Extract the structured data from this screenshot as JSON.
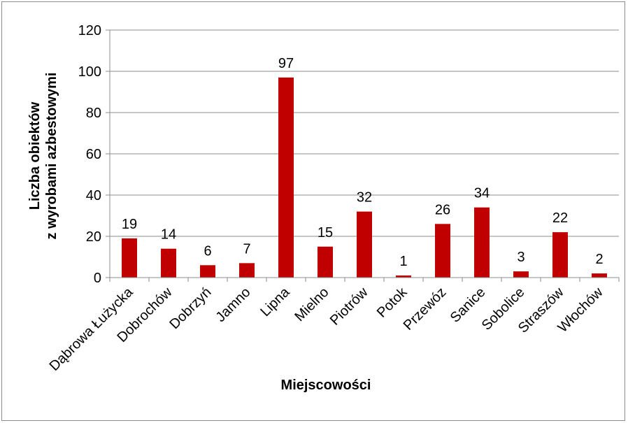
{
  "chart_data": {
    "type": "bar",
    "title": "",
    "xlabel": "Miejscowości",
    "ylabel_lines": [
      "Liczba obiektów",
      "z wyrobami azbestowymi"
    ],
    "categories": [
      "Dąbrowa Łużycka",
      "Dobrochów",
      "Dobrzyń",
      "Jamno",
      "Lipna",
      "Mielno",
      "Piotrów",
      "Potok",
      "Przewóz",
      "Sanice",
      "Sobolice",
      "Straszów",
      "Włochów"
    ],
    "values": [
      19,
      14,
      6,
      7,
      97,
      15,
      32,
      1,
      26,
      34,
      3,
      22,
      2
    ],
    "ylim": [
      0,
      120
    ],
    "yticks": [
      0,
      20,
      40,
      60,
      80,
      100,
      120
    ],
    "grid": true,
    "legend": "none",
    "bar_color": "#c00000",
    "data_labels": true
  }
}
